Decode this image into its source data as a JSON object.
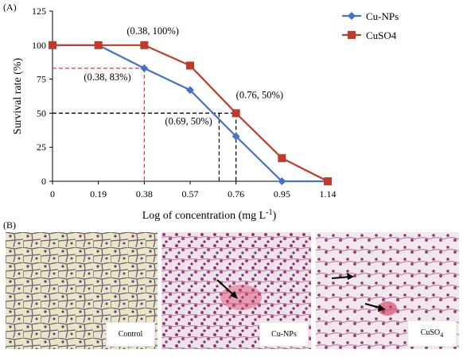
{
  "panel_a": {
    "tag": "(A)"
  },
  "panel_b": {
    "tag": "(B)"
  },
  "chart_data": {
    "type": "line",
    "xlabel": "Log of concentration (mg L",
    "xlabel_sup": "-1",
    "xlabel_end": ")",
    "ylabel": "Survival rate (%)",
    "categories": [
      "0",
      "0.19",
      "0.38",
      "0.57",
      "0.76",
      "0.95",
      "1.14"
    ],
    "x": [
      0,
      0.19,
      0.38,
      0.57,
      0.76,
      0.95,
      1.14
    ],
    "xlim": [
      0,
      1.14
    ],
    "ylim": [
      0,
      125
    ],
    "yticks": [
      0,
      25,
      50,
      75,
      100,
      125
    ],
    "grid": false,
    "legend_position": "top-right",
    "series": [
      {
        "name": "Cu-NPs",
        "color": "#4472c4",
        "marker": "diamond",
        "values": [
          100,
          100,
          83,
          67,
          33,
          0,
          0
        ]
      },
      {
        "name": "CuSO4",
        "color": "#c0392b",
        "marker": "square",
        "values": [
          100,
          100,
          100,
          85,
          50,
          17,
          0
        ]
      }
    ],
    "annotations": [
      {
        "text": "(0.38, 100%)",
        "x": 0.38,
        "y": 100
      },
      {
        "text": "(0.38, 83%)",
        "x": 0.38,
        "y": 83
      },
      {
        "text": "(0.76, 50%)",
        "x": 0.76,
        "y": 50
      },
      {
        "text": "(0.69, 50%)",
        "x": 0.69,
        "y": 50
      }
    ],
    "guides": [
      {
        "x": 0.38,
        "y": 83,
        "color": "#e53935"
      },
      {
        "x": 0.69,
        "y": 50,
        "color": "#000000"
      },
      {
        "x": 0.76,
        "y": 50,
        "color": "#000000"
      }
    ]
  },
  "micrographs": [
    {
      "label": "Control"
    },
    {
      "label": "Cu-NPs"
    },
    {
      "label": "CuSO",
      "label_sub": "4"
    }
  ]
}
